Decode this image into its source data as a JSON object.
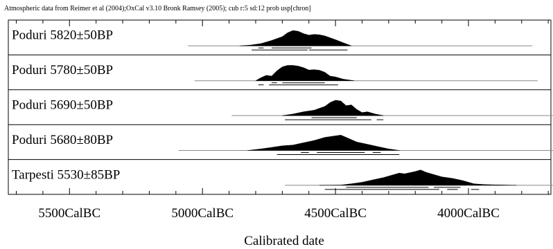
{
  "header": {
    "text": "Atmospheric data from Reimer et al (2004);OxCal v3.10 Bronk Ramsey (2005); cub r:5 sd:12 prob usp[chron]"
  },
  "chart_data": {
    "type": "calibration-plot",
    "xlabel": "Calibrated date",
    "x_unit": "CalBC",
    "x_direction": "descending",
    "xlim": [
      5730,
      3690
    ],
    "major_ticks": [
      {
        "value": 5500,
        "label": "5500CalBC"
      },
      {
        "value": 5000,
        "label": "5000CalBC"
      },
      {
        "value": 4500,
        "label": "4500CalBC"
      },
      {
        "value": 4000,
        "label": "4000CalBC"
      }
    ],
    "minor_tick_step": 100,
    "colors": {
      "distribution": "#000000",
      "line": "#888888",
      "frame": "#000000"
    },
    "samples": [
      {
        "label": "Poduri  5820±50BP",
        "line_range": [
          5055,
          3760
        ],
        "distribution": [
          [
            4860,
            0
          ],
          [
            4820,
            0.05
          ],
          [
            4780,
            0.15
          ],
          [
            4740,
            0.35
          ],
          [
            4700,
            0.6
          ],
          [
            4680,
            0.85
          ],
          [
            4660,
            1.0
          ],
          [
            4640,
            0.95
          ],
          [
            4620,
            0.8
          ],
          [
            4600,
            0.7
          ],
          [
            4580,
            0.75
          ],
          [
            4560,
            0.72
          ],
          [
            4540,
            0.65
          ],
          [
            4500,
            0.4
          ],
          [
            4470,
            0.2
          ],
          [
            4440,
            0
          ]
        ],
        "ranges_95": [
          [
            4815,
            4605
          ],
          [
            4600,
            4455
          ]
        ],
        "ranges_68": [
          [
            4790,
            4770
          ],
          [
            4740,
            4590
          ]
        ]
      },
      {
        "label": "Poduri  5780±50BP",
        "line_range": [
          5030,
          3740
        ],
        "distribution": [
          [
            4800,
            0
          ],
          [
            4780,
            0.2
          ],
          [
            4760,
            0.35
          ],
          [
            4740,
            0.3
          ],
          [
            4720,
            0.65
          ],
          [
            4700,
            0.9
          ],
          [
            4680,
            1.0
          ],
          [
            4660,
            1.0
          ],
          [
            4640,
            0.95
          ],
          [
            4620,
            0.85
          ],
          [
            4600,
            0.7
          ],
          [
            4580,
            0.72
          ],
          [
            4560,
            0.68
          ],
          [
            4540,
            0.55
          ],
          [
            4520,
            0.3
          ],
          [
            4500,
            0.25
          ],
          [
            4470,
            0.1
          ],
          [
            4430,
            0
          ]
        ],
        "ranges_95": [
          [
            4790,
            4770
          ],
          [
            4750,
            4490
          ]
        ],
        "ranges_68": [
          [
            4740,
            4720
          ],
          [
            4700,
            4540
          ]
        ]
      },
      {
        "label": "Poduri  5690±50BP",
        "line_range": [
          4890,
          3520
        ],
        "distribution": [
          [
            4700,
            0
          ],
          [
            4660,
            0.1
          ],
          [
            4620,
            0.25
          ],
          [
            4580,
            0.35
          ],
          [
            4540,
            0.6
          ],
          [
            4520,
            0.85
          ],
          [
            4500,
            1.0
          ],
          [
            4480,
            0.95
          ],
          [
            4460,
            0.65
          ],
          [
            4440,
            0.7
          ],
          [
            4420,
            0.4
          ],
          [
            4400,
            0.2
          ],
          [
            4380,
            0.25
          ],
          [
            4350,
            0.1
          ],
          [
            4320,
            0
          ]
        ],
        "ranges_95": [
          [
            4690,
            4365
          ],
          [
            4345,
            4320
          ]
        ],
        "ranges_68": [
          [
            4590,
            4420
          ]
        ]
      },
      {
        "label": "Poduri  5680±80BP",
        "line_range": [
          5090,
          3300
        ],
        "distribution": [
          [
            4830,
            0
          ],
          [
            4780,
            0.1
          ],
          [
            4740,
            0.2
          ],
          [
            4700,
            0.3
          ],
          [
            4660,
            0.35
          ],
          [
            4620,
            0.5
          ],
          [
            4580,
            0.65
          ],
          [
            4540,
            0.85
          ],
          [
            4500,
            0.95
          ],
          [
            4480,
            1.0
          ],
          [
            4460,
            0.85
          ],
          [
            4420,
            0.55
          ],
          [
            4380,
            0.4
          ],
          [
            4340,
            0.25
          ],
          [
            4300,
            0.1
          ],
          [
            4260,
            0
          ]
        ],
        "ranges_95": [
          [
            4720,
            4260
          ]
        ],
        "ranges_68": [
          [
            4630,
            4600
          ],
          [
            4570,
            4390
          ],
          [
            4360,
            4330
          ]
        ]
      },
      {
        "label": "Tarpesti  5530±85BP",
        "line_range": [
          4690,
          3060
        ],
        "distribution": [
          [
            4560,
            0
          ],
          [
            4480,
            0.02
          ],
          [
            4440,
            0.1
          ],
          [
            4400,
            0.2
          ],
          [
            4360,
            0.35
          ],
          [
            4320,
            0.5
          ],
          [
            4280,
            0.7
          ],
          [
            4260,
            0.8
          ],
          [
            4240,
            0.75
          ],
          [
            4200,
            0.9
          ],
          [
            4180,
            1.0
          ],
          [
            4160,
            0.85
          ],
          [
            4140,
            0.75
          ],
          [
            4100,
            0.55
          ],
          [
            4060,
            0.45
          ],
          [
            4020,
            0.3
          ],
          [
            3980,
            0.1
          ],
          [
            3940,
            0.05
          ],
          [
            3900,
            0.03
          ],
          [
            3860,
            0.02
          ],
          [
            3820,
            0
          ]
        ],
        "ranges_95": [
          [
            4540,
            4110
          ],
          [
            4080,
            4040
          ],
          [
            3990,
            3960
          ]
        ],
        "ranges_68": [
          [
            4460,
            4150
          ],
          [
            4130,
            4030
          ]
        ]
      }
    ]
  }
}
